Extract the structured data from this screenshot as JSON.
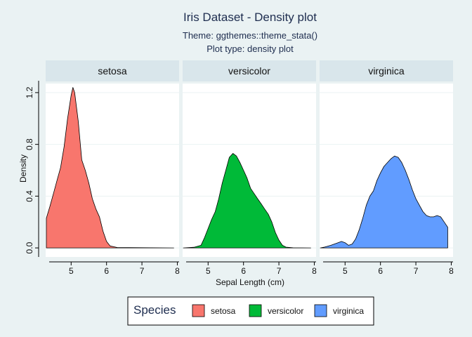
{
  "chart_data": {
    "type": "area",
    "title": "Iris Dataset - Density plot",
    "subtitle_lines": [
      "Theme: ggthemes::theme_stata()",
      "Plot type: density plot"
    ],
    "xlabel": "Sepal Length (cm)",
    "ylabel": "Density",
    "xlim": [
      4.3,
      7.9
    ],
    "ylim": [
      0,
      1.27
    ],
    "x_ticks": [
      "5",
      "6",
      "7",
      "8"
    ],
    "y_ticks": [
      "0.0",
      "0.4",
      "0.8",
      "1.2"
    ],
    "grid": "horizontal",
    "legend": {
      "title": "Species",
      "position": "bottom",
      "items": [
        "setosa",
        "versicolor",
        "virginica"
      ]
    },
    "colors": {
      "setosa": "#f8766d",
      "versicolor": "#00ba38",
      "virginica": "#619cff",
      "background": "#eaf2f3",
      "strip": "#d9e6eb",
      "title": "#1e2d4f"
    },
    "series": [
      {
        "name": "setosa",
        "x": [
          4.3,
          4.4,
          4.5,
          4.6,
          4.7,
          4.8,
          4.9,
          5.0,
          5.05,
          5.1,
          5.2,
          5.3,
          5.4,
          5.5,
          5.6,
          5.7,
          5.8,
          5.9,
          6.0,
          6.1,
          6.3,
          7.9
        ],
        "y": [
          0.23,
          0.32,
          0.42,
          0.52,
          0.62,
          0.78,
          1.0,
          1.18,
          1.24,
          1.2,
          0.98,
          0.68,
          0.6,
          0.5,
          0.38,
          0.3,
          0.24,
          0.13,
          0.05,
          0.015,
          0.003,
          0.0
        ]
      },
      {
        "name": "versicolor",
        "x": [
          4.3,
          4.6,
          4.8,
          4.9,
          5.0,
          5.1,
          5.2,
          5.3,
          5.4,
          5.5,
          5.6,
          5.7,
          5.8,
          5.9,
          6.0,
          6.1,
          6.2,
          6.3,
          6.4,
          6.5,
          6.6,
          6.7,
          6.8,
          6.9,
          7.0,
          7.1,
          7.2,
          7.4,
          7.9
        ],
        "y": [
          0.0,
          0.005,
          0.02,
          0.08,
          0.15,
          0.22,
          0.28,
          0.38,
          0.5,
          0.6,
          0.7,
          0.73,
          0.71,
          0.66,
          0.6,
          0.54,
          0.46,
          0.42,
          0.38,
          0.34,
          0.3,
          0.26,
          0.2,
          0.12,
          0.06,
          0.02,
          0.006,
          0.001,
          0.0
        ]
      },
      {
        "name": "virginica",
        "x": [
          4.3,
          4.4,
          4.6,
          4.8,
          4.9,
          5.0,
          5.1,
          5.2,
          5.3,
          5.4,
          5.5,
          5.6,
          5.7,
          5.8,
          5.9,
          6.0,
          6.1,
          6.2,
          6.3,
          6.4,
          6.5,
          6.6,
          6.7,
          6.8,
          6.9,
          7.0,
          7.1,
          7.2,
          7.3,
          7.4,
          7.5,
          7.6,
          7.7,
          7.8,
          7.9
        ],
        "y": [
          0.0,
          0.005,
          0.02,
          0.04,
          0.05,
          0.04,
          0.02,
          0.03,
          0.07,
          0.14,
          0.23,
          0.33,
          0.4,
          0.44,
          0.52,
          0.58,
          0.63,
          0.66,
          0.69,
          0.71,
          0.7,
          0.66,
          0.6,
          0.53,
          0.45,
          0.38,
          0.33,
          0.28,
          0.25,
          0.24,
          0.24,
          0.25,
          0.24,
          0.2,
          0.16
        ]
      }
    ]
  }
}
